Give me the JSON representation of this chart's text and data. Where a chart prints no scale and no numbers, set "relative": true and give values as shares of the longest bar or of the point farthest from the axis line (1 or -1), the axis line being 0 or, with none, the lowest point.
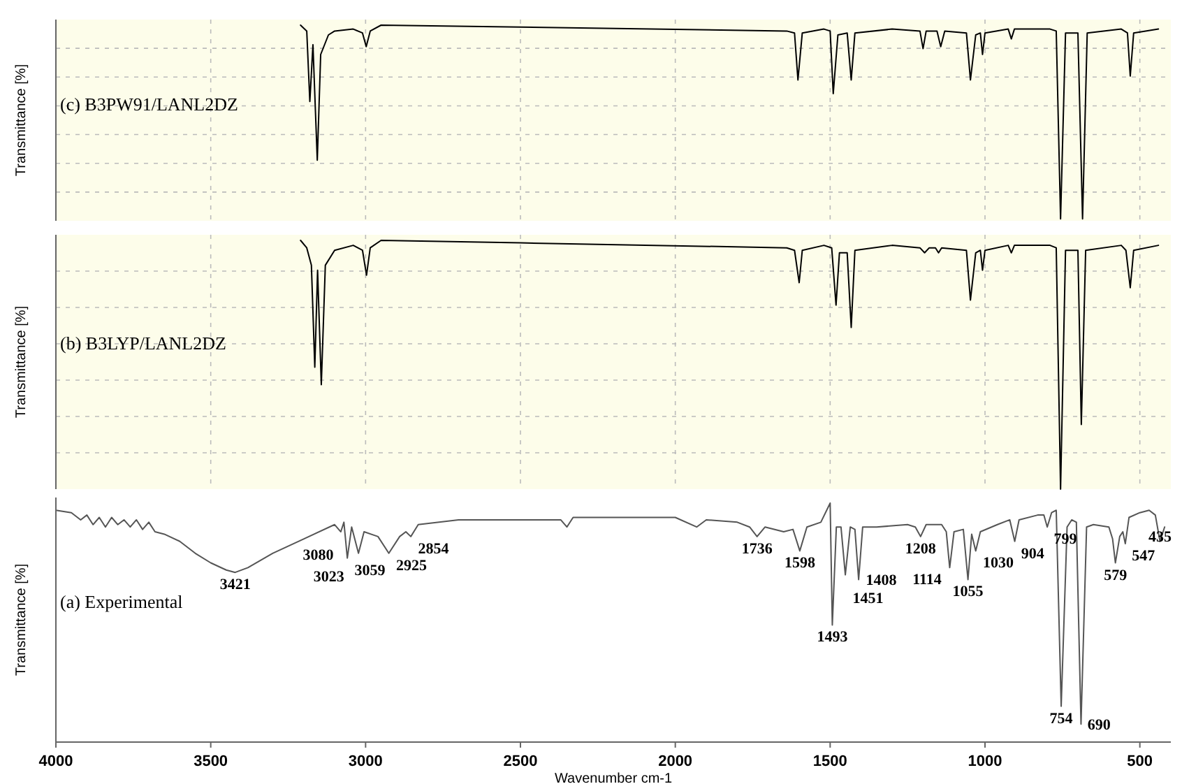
{
  "chart_data": [
    {
      "type": "line",
      "title": "(c) B3PW91/LANL2DZ",
      "ylabel": "Transmittance [%]",
      "relative": true,
      "xlim": [
        4000,
        400
      ],
      "xticks": [
        4000,
        3500,
        3000,
        2500,
        2000,
        1500,
        1000,
        500
      ],
      "tick_labels": false,
      "grid": true,
      "series": [
        {
          "color": "#000000",
          "x": [
            3210,
            3190,
            3180,
            3170,
            3156,
            3145,
            3120,
            3100,
            3040,
            3010,
            2998,
            2985,
            2950,
            2500,
            1640,
            1615,
            1604,
            1590,
            1520,
            1500,
            1490,
            1475,
            1445,
            1432,
            1420,
            1300,
            1210,
            1200,
            1190,
            1155,
            1143,
            1130,
            1060,
            1047,
            1030,
            1015,
            1008,
            1000,
            925,
            915,
            905,
            790,
            770,
            756,
            740,
            700,
            685,
            670,
            560,
            540,
            531,
            520,
            440
          ],
          "values": [
            1.0,
            0.97,
            0.61,
            0.9,
            0.31,
            0.85,
            0.95,
            0.97,
            0.98,
            0.96,
            0.89,
            0.97,
            1.0,
            0.99,
            0.97,
            0.96,
            0.72,
            0.96,
            0.98,
            0.97,
            0.65,
            0.95,
            0.96,
            0.72,
            0.96,
            0.98,
            0.97,
            0.88,
            0.97,
            0.97,
            0.89,
            0.97,
            0.96,
            0.72,
            0.95,
            0.96,
            0.85,
            0.96,
            0.98,
            0.93,
            0.98,
            0.98,
            0.97,
            0.01,
            0.96,
            0.96,
            0.01,
            0.96,
            0.98,
            0.96,
            0.74,
            0.96,
            0.98
          ]
        }
      ]
    },
    {
      "type": "line",
      "title": "(b) B3LYP/LANL2DZ",
      "ylabel": "Transmittance [%]",
      "relative": true,
      "xlim": [
        4000,
        400
      ],
      "xticks": [
        4000,
        3500,
        3000,
        2500,
        2000,
        1500,
        1000,
        500
      ],
      "tick_labels": false,
      "grid": true,
      "series": [
        {
          "color": "#000000",
          "x": [
            3210,
            3190,
            3175,
            3164,
            3155,
            3143,
            3130,
            3100,
            3040,
            3010,
            2997,
            2985,
            2950,
            2500,
            1640,
            1615,
            1600,
            1590,
            1520,
            1495,
            1481,
            1470,
            1445,
            1432,
            1420,
            1300,
            1210,
            1195,
            1180,
            1160,
            1150,
            1140,
            1060,
            1047,
            1030,
            1015,
            1008,
            1000,
            925,
            915,
            905,
            790,
            770,
            756,
            740,
            700,
            689,
            675,
            560,
            545,
            531,
            520,
            440
          ],
          "values": [
            1.0,
            0.97,
            0.9,
            0.49,
            0.88,
            0.42,
            0.9,
            0.96,
            0.98,
            0.96,
            0.86,
            0.97,
            1.0,
            0.99,
            0.97,
            0.96,
            0.83,
            0.96,
            0.98,
            0.97,
            0.74,
            0.95,
            0.95,
            0.65,
            0.96,
            0.98,
            0.97,
            0.95,
            0.97,
            0.97,
            0.95,
            0.97,
            0.96,
            0.76,
            0.95,
            0.96,
            0.88,
            0.96,
            0.98,
            0.95,
            0.98,
            0.98,
            0.97,
            0.0,
            0.96,
            0.96,
            0.26,
            0.96,
            0.98,
            0.96,
            0.81,
            0.96,
            0.98
          ]
        }
      ]
    },
    {
      "type": "line",
      "title": "(a) Experimental",
      "ylabel": "Transmittance [%]",
      "xlabel": "Wavenumber cm-1",
      "relative": true,
      "xlim": [
        4000,
        400
      ],
      "xticks": [
        4000,
        3500,
        3000,
        2500,
        2000,
        1500,
        1000,
        500
      ],
      "tick_labels": "x",
      "grid": false,
      "series": [
        {
          "color": "#555555",
          "x": [
            4000,
            3950,
            3920,
            3900,
            3880,
            3860,
            3840,
            3820,
            3800,
            3780,
            3760,
            3740,
            3720,
            3700,
            3680,
            3650,
            3600,
            3550,
            3500,
            3450,
            3421,
            3380,
            3300,
            3200,
            3100,
            3080,
            3070,
            3059,
            3045,
            3023,
            3005,
            2960,
            2925,
            2890,
            2870,
            2854,
            2830,
            2700,
            2500,
            2370,
            2350,
            2330,
            2200,
            2000,
            1931,
            1900,
            1800,
            1760,
            1736,
            1710,
            1650,
            1620,
            1598,
            1575,
            1530,
            1500,
            1493,
            1480,
            1465,
            1451,
            1435,
            1420,
            1408,
            1395,
            1350,
            1250,
            1225,
            1208,
            1190,
            1140,
            1125,
            1114,
            1100,
            1070,
            1055,
            1043,
            1030,
            1015,
            960,
            920,
            904,
            890,
            830,
            810,
            799,
            785,
            770,
            754,
            735,
            720,
            705,
            690,
            672,
            650,
            600,
            588,
            579,
            565,
            555,
            547,
            535,
            500,
            470,
            450,
            435,
            420
          ],
          "values": [
            0.97,
            0.96,
            0.93,
            0.95,
            0.91,
            0.94,
            0.9,
            0.94,
            0.91,
            0.93,
            0.9,
            0.93,
            0.89,
            0.92,
            0.88,
            0.87,
            0.84,
            0.79,
            0.75,
            0.72,
            0.71,
            0.73,
            0.79,
            0.85,
            0.91,
            0.88,
            0.92,
            0.77,
            0.9,
            0.79,
            0.88,
            0.86,
            0.79,
            0.86,
            0.88,
            0.86,
            0.91,
            0.93,
            0.93,
            0.93,
            0.9,
            0.94,
            0.94,
            0.94,
            0.9,
            0.93,
            0.92,
            0.9,
            0.86,
            0.9,
            0.88,
            0.89,
            0.8,
            0.9,
            0.92,
            1.0,
            0.49,
            0.9,
            0.9,
            0.7,
            0.9,
            0.89,
            0.68,
            0.9,
            0.9,
            0.91,
            0.9,
            0.86,
            0.91,
            0.91,
            0.88,
            0.73,
            0.88,
            0.89,
            0.68,
            0.87,
            0.8,
            0.88,
            0.91,
            0.93,
            0.84,
            0.93,
            0.95,
            0.95,
            0.9,
            0.96,
            0.97,
            0.15,
            0.9,
            0.93,
            0.92,
            0.075,
            0.9,
            0.91,
            0.9,
            0.85,
            0.75,
            0.86,
            0.88,
            0.83,
            0.94,
            0.96,
            0.97,
            0.95,
            0.84,
            0.9
          ]
        }
      ],
      "annotations": [
        {
          "text": "3421",
          "x": 3421,
          "y": 0.71
        },
        {
          "text": "3080",
          "x": 3080,
          "y": 0.88
        },
        {
          "text": "3059",
          "x": 3059,
          "y": 0.77
        },
        {
          "text": "3023",
          "x": 3023,
          "y": 0.79
        },
        {
          "text": "2925",
          "x": 2925,
          "y": 0.79
        },
        {
          "text": "2854",
          "x": 2854,
          "y": 0.86
        },
        {
          "text": "1736",
          "x": 1736,
          "y": 0.86
        },
        {
          "text": "1598",
          "x": 1598,
          "y": 0.8
        },
        {
          "text": "1493",
          "x": 1493,
          "y": 0.49
        },
        {
          "text": "1451",
          "x": 1451,
          "y": 0.7
        },
        {
          "text": "1408",
          "x": 1408,
          "y": 0.68
        },
        {
          "text": "1208",
          "x": 1208,
          "y": 0.86
        },
        {
          "text": "1114",
          "x": 1114,
          "y": 0.73
        },
        {
          "text": "1055",
          "x": 1055,
          "y": 0.68
        },
        {
          "text": "1030",
          "x": 1030,
          "y": 0.8
        },
        {
          "text": "904",
          "x": 904,
          "y": 0.84
        },
        {
          "text": "799",
          "x": 799,
          "y": 0.9
        },
        {
          "text": "754",
          "x": 754,
          "y": 0.15
        },
        {
          "text": "690",
          "x": 690,
          "y": 0.075
        },
        {
          "text": "579",
          "x": 579,
          "y": 0.75
        },
        {
          "text": "547",
          "x": 547,
          "y": 0.83
        },
        {
          "text": "435",
          "x": 435,
          "y": 0.84
        }
      ]
    }
  ]
}
